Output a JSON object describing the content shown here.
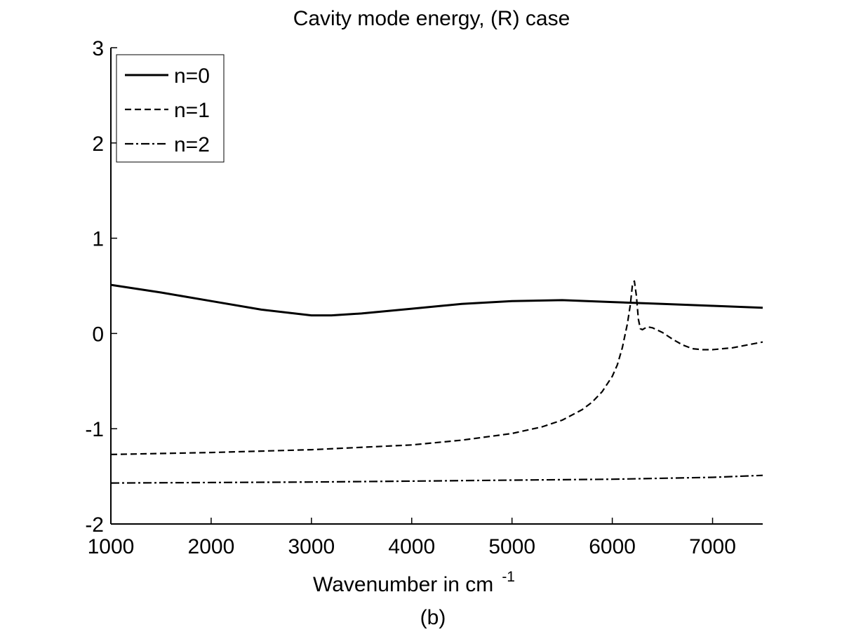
{
  "chart_data": {
    "type": "line",
    "title": "Cavity mode energy, (R) case",
    "xlabel": "Wavenumber in cm",
    "xlabel_superscript": "-1",
    "caption": "(b)",
    "xlim": [
      1000,
      7500
    ],
    "ylim": [
      -2,
      3
    ],
    "xticks": [
      1000,
      2000,
      3000,
      4000,
      5000,
      6000,
      7000
    ],
    "yticks": [
      -2,
      -1,
      0,
      1,
      2,
      3
    ],
    "legend_position": "top-left",
    "series": [
      {
        "name": "n=0",
        "style": "solid",
        "x": [
          1000,
          1500,
          2000,
          2500,
          3000,
          3200,
          3500,
          4000,
          4500,
          5000,
          5500,
          6000,
          6500,
          7000,
          7500
        ],
        "y": [
          0.51,
          0.43,
          0.34,
          0.25,
          0.19,
          0.19,
          0.21,
          0.26,
          0.31,
          0.34,
          0.35,
          0.33,
          0.31,
          0.29,
          0.27
        ]
      },
      {
        "name": "n=1",
        "style": "dashed",
        "x": [
          1000,
          2000,
          3000,
          4000,
          4500,
          5000,
          5300,
          5500,
          5700,
          5800,
          5900,
          6000,
          6050,
          6100,
          6150,
          6180,
          6200,
          6220,
          6240,
          6260,
          6280,
          6300,
          6350,
          6400,
          6500,
          6600,
          6700,
          6800,
          6900,
          7000,
          7100,
          7200,
          7300,
          7400,
          7500
        ],
        "y": [
          -1.27,
          -1.25,
          -1.22,
          -1.17,
          -1.12,
          -1.05,
          -0.98,
          -0.91,
          -0.8,
          -0.72,
          -0.61,
          -0.45,
          -0.33,
          -0.15,
          0.1,
          0.3,
          0.5,
          0.55,
          0.4,
          0.15,
          0.05,
          0.04,
          0.07,
          0.06,
          0.01,
          -0.06,
          -0.12,
          -0.16,
          -0.17,
          -0.17,
          -0.16,
          -0.15,
          -0.13,
          -0.11,
          -0.09
        ]
      },
      {
        "name": "n=2",
        "style": "dashdot",
        "x": [
          1000,
          2000,
          3000,
          4000,
          5000,
          6000,
          7000,
          7500
        ],
        "y": [
          -1.57,
          -1.565,
          -1.56,
          -1.55,
          -1.54,
          -1.53,
          -1.51,
          -1.49
        ]
      }
    ]
  }
}
